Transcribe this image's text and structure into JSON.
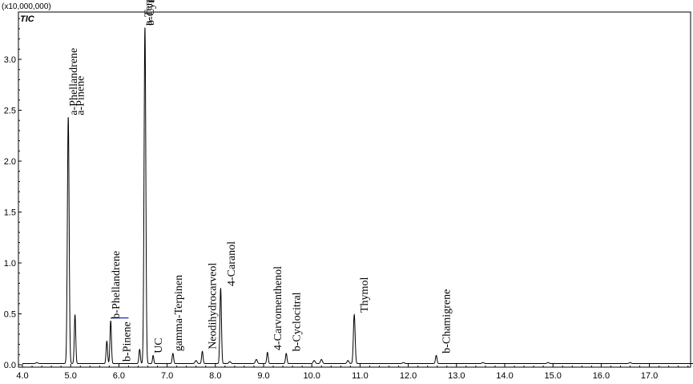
{
  "chart_data": {
    "type": "line",
    "title": "TIC",
    "y_multiplier_label": "(x10,000,000)",
    "xlabel": "",
    "ylabel": "",
    "xlim": [
      4.0,
      18.0
    ],
    "ylim": [
      0.0,
      3.4
    ],
    "x_ticks": [
      "4.0",
      "5.0",
      "6.0",
      "7.0",
      "8.0",
      "9.0",
      "10.0",
      "11.0",
      "12.0",
      "13.0",
      "14.0",
      "15.0",
      "16.0",
      "17.0"
    ],
    "y_ticks": [
      "0.0",
      "0.5",
      "1.0",
      "1.5",
      "2.0",
      "2.5",
      "3.0"
    ],
    "grid": false,
    "line_color": "#000000",
    "peaks": [
      {
        "rt": 4.95,
        "height": 2.42,
        "width": 0.018
      },
      {
        "rt": 5.09,
        "height": 0.48,
        "width": 0.015
      },
      {
        "rt": 5.75,
        "height": 0.22,
        "width": 0.015
      },
      {
        "rt": 5.83,
        "height": 0.42,
        "width": 0.015
      },
      {
        "rt": 6.43,
        "height": 0.14,
        "width": 0.015
      },
      {
        "rt": 6.54,
        "height": 3.3,
        "width": 0.018
      },
      {
        "rt": 6.71,
        "height": 0.08,
        "width": 0.013
      },
      {
        "rt": 7.12,
        "height": 0.1,
        "width": 0.015
      },
      {
        "rt": 7.73,
        "height": 0.12,
        "width": 0.015
      },
      {
        "rt": 8.11,
        "height": 0.74,
        "width": 0.016
      },
      {
        "rt": 9.08,
        "height": 0.11,
        "width": 0.015
      },
      {
        "rt": 9.47,
        "height": 0.1,
        "width": 0.015
      },
      {
        "rt": 10.88,
        "height": 0.48,
        "width": 0.018
      },
      {
        "rt": 12.58,
        "height": 0.08,
        "width": 0.016
      }
    ],
    "minor_peaks": [
      {
        "rt": 4.3,
        "height": 0.01
      },
      {
        "rt": 7.6,
        "height": 0.03
      },
      {
        "rt": 8.3,
        "height": 0.02
      },
      {
        "rt": 8.85,
        "height": 0.04
      },
      {
        "rt": 10.05,
        "height": 0.03
      },
      {
        "rt": 10.2,
        "height": 0.04
      },
      {
        "rt": 10.75,
        "height": 0.03
      },
      {
        "rt": 11.9,
        "height": 0.01
      },
      {
        "rt": 13.55,
        "height": 0.01
      },
      {
        "rt": 14.9,
        "height": 0.01
      },
      {
        "rt": 16.6,
        "height": 0.01
      }
    ],
    "annotations": [
      {
        "text": "a-Phellandrene",
        "rt": 4.95
      },
      {
        "text": "a-Pinene",
        "rt": 5.09
      },
      {
        "text": "b-Phellandrene",
        "rt": 5.83
      },
      {
        "text": "b-Pinene",
        "rt": 6.05
      },
      {
        "text": "b-Cymene",
        "rt": 6.54
      },
      {
        "text": "a-Terpinen",
        "rt": 6.5
      },
      {
        "text": "UC",
        "rt": 6.71
      },
      {
        "text": "gamma-Terpinen",
        "rt": 7.12
      },
      {
        "text": "Neodihydrocarveol",
        "rt": 7.83
      },
      {
        "text": "4-Caranol",
        "rt": 8.22
      },
      {
        "text": "4-Carvomenthenol",
        "rt": 9.18
      },
      {
        "text": "b-Cyclocitral",
        "rt": 9.57
      },
      {
        "text": "Thymol",
        "rt": 10.98
      },
      {
        "text": "b-Chamigrene",
        "rt": 12.68
      }
    ],
    "baseline_marker_color": "#2233cc"
  }
}
